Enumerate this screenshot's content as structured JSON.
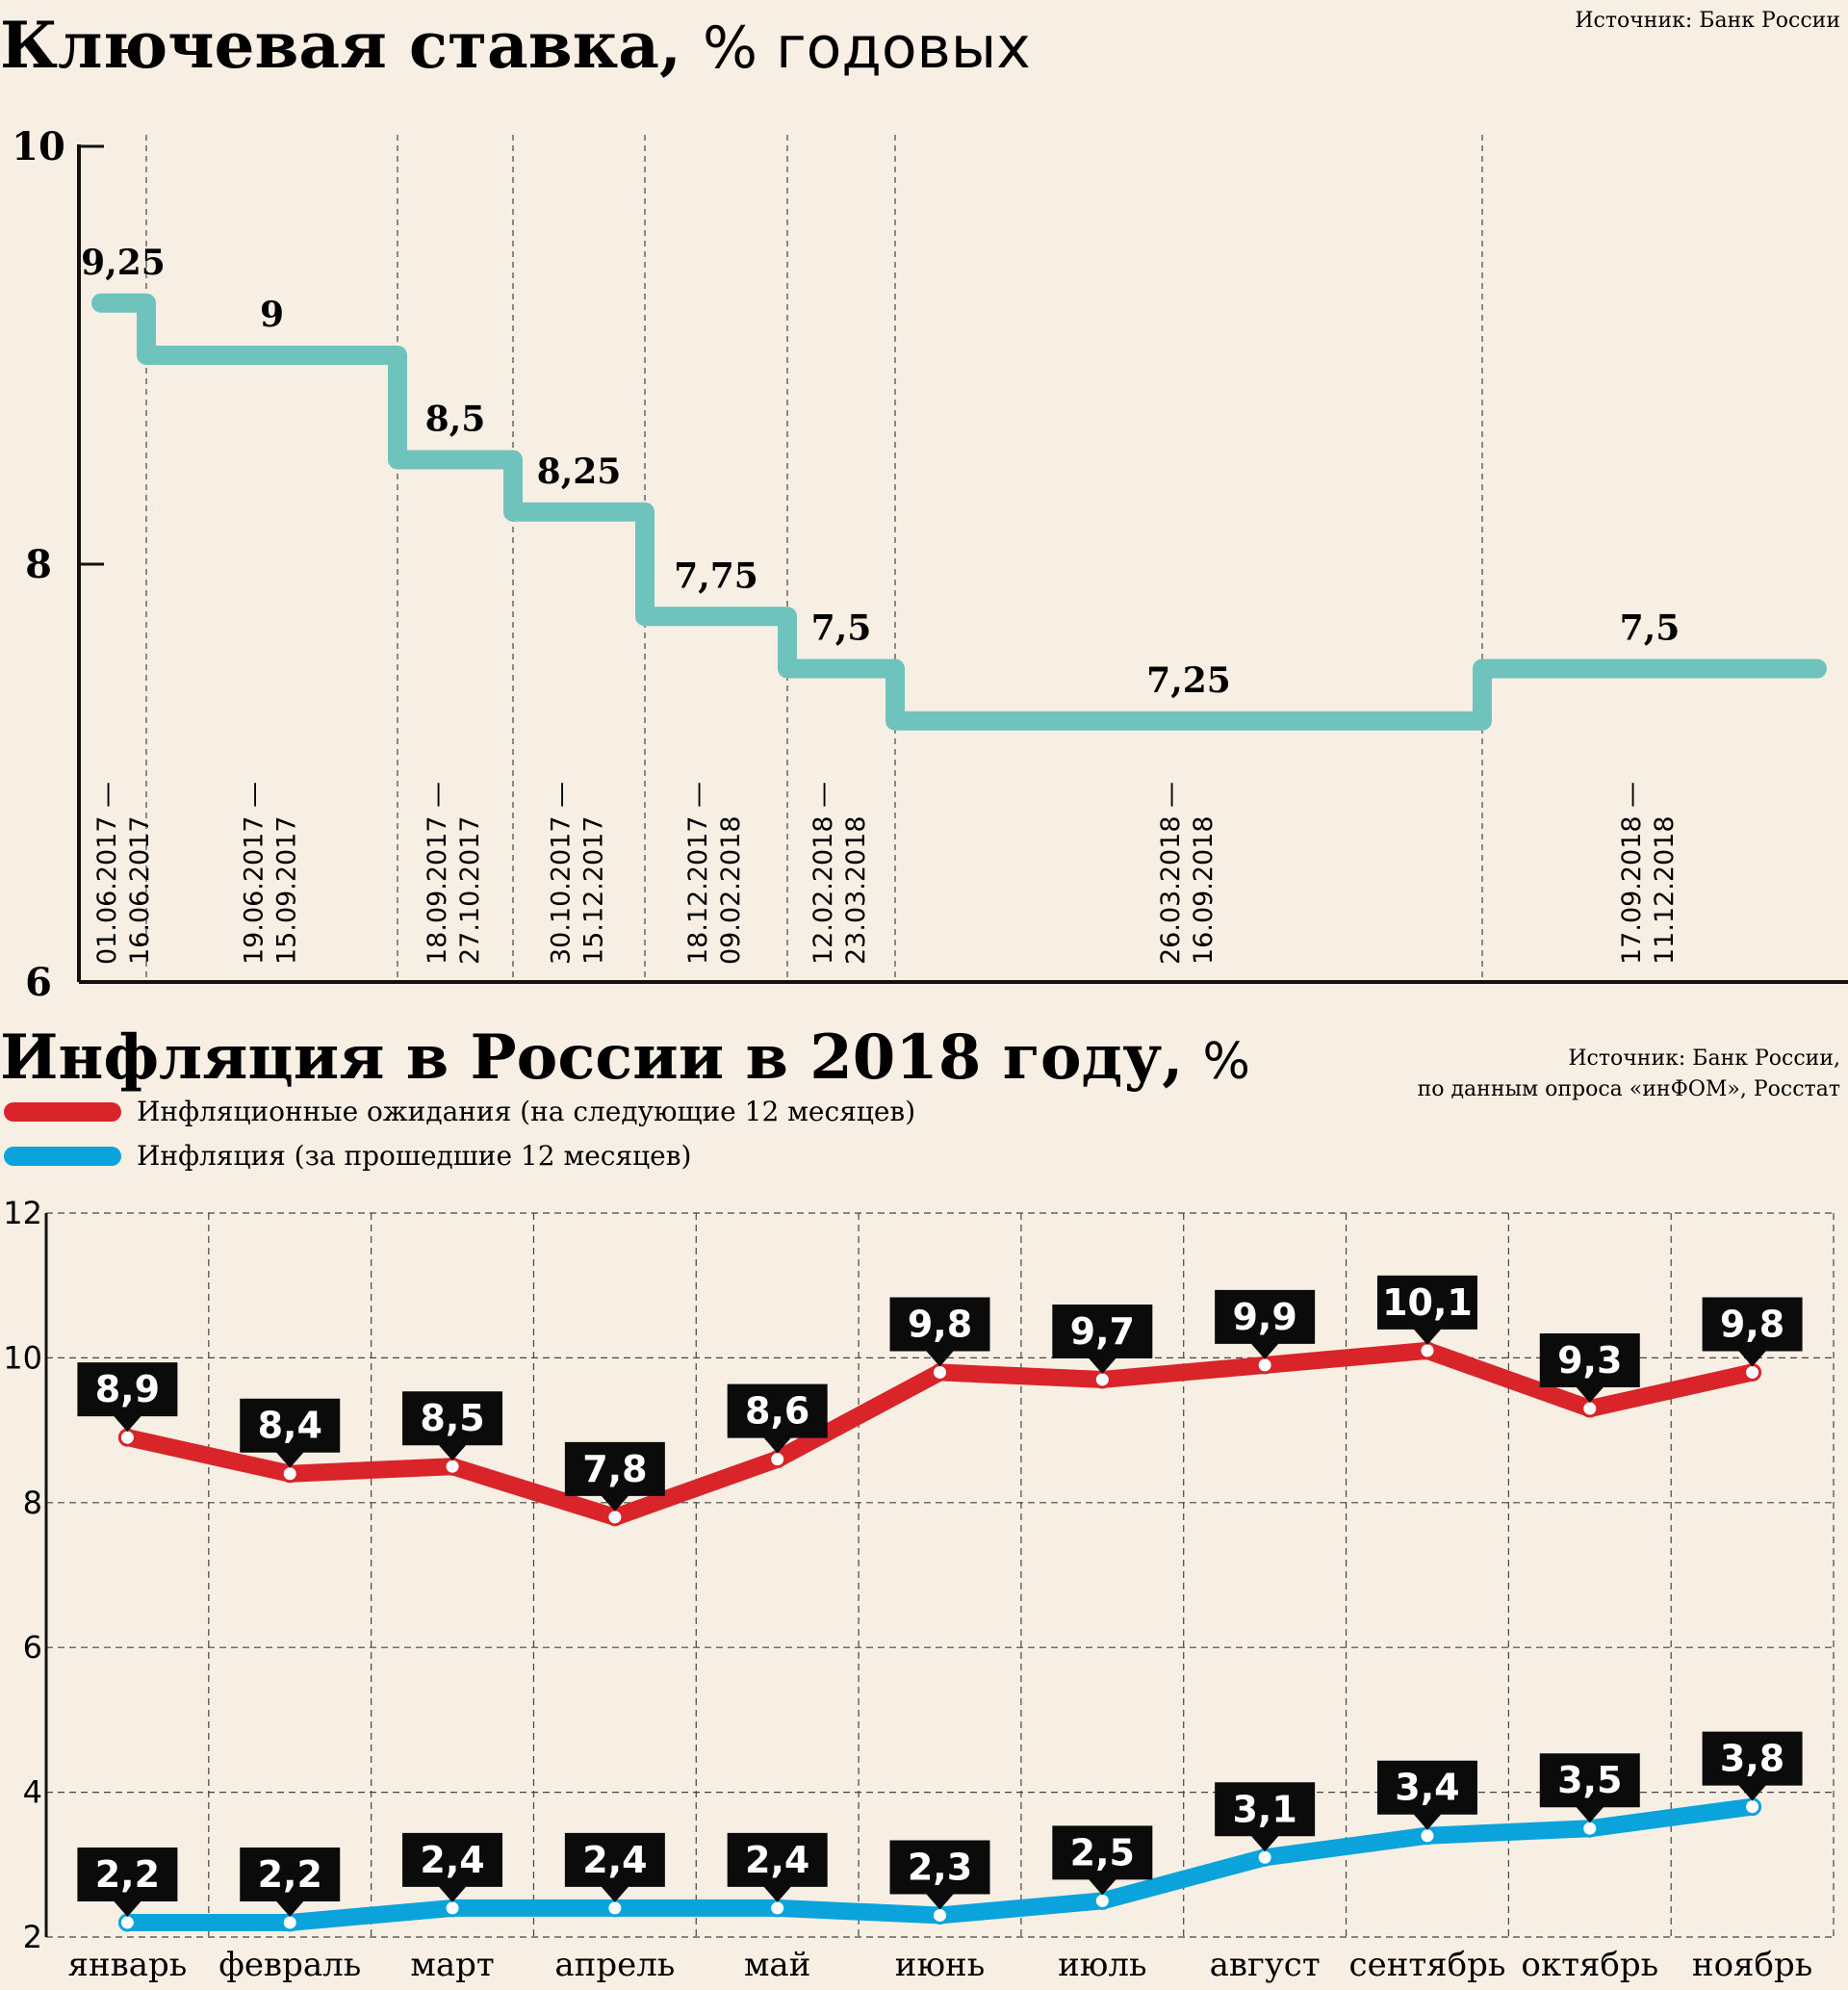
{
  "colors": {
    "background": "#f8efe4",
    "key_rate_line": "#6ec3bd",
    "expectations_line": "#d9252a",
    "inflation_line": "#0aa3dc",
    "label_box": "#0b0b0b",
    "label_text": "#ffffff",
    "text": "#111111"
  },
  "chart_data": [
    {
      "type": "line",
      "title": "Ключевая ставка,",
      "subtitle": "% годовых",
      "source": "Источник: Банк России",
      "step": true,
      "ylim": [
        6,
        10
      ],
      "y_ticks": [
        "10",
        "8",
        "6"
      ],
      "grid": "vertical-dashed",
      "periods": [
        {
          "start": "01.06.2017",
          "end": "16.06.2017",
          "value": 9.25,
          "label": "9,25",
          "date_label_line1": "01.06.2017 —",
          "date_label_line2": "16.06.2017"
        },
        {
          "start": "19.06.2017",
          "end": "15.09.2017",
          "value": 9.0,
          "label": "9",
          "date_label_line1": "19.06.2017 —",
          "date_label_line2": "15.09.2017"
        },
        {
          "start": "18.09.2017",
          "end": "27.10.2017",
          "value": 8.5,
          "label": "8,5",
          "date_label_line1": "18.09.2017 —",
          "date_label_line2": "27.10.2017"
        },
        {
          "start": "30.10.2017",
          "end": "15.12.2017",
          "value": 8.25,
          "label": "8,25",
          "date_label_line1": "30.10.2017 —",
          "date_label_line2": "15.12.2017"
        },
        {
          "start": "18.12.2017",
          "end": "09.02.2018",
          "value": 7.75,
          "label": "7,75",
          "date_label_line1": "18.12.2017 —",
          "date_label_line2": "09.02.2018"
        },
        {
          "start": "12.02.2018",
          "end": "23.03.2018",
          "value": 7.5,
          "label": "7,5",
          "date_label_line1": "12.02.2018 —",
          "date_label_line2": "23.03.2018"
        },
        {
          "start": "26.03.2018",
          "end": "16.09.2018",
          "value": 7.25,
          "label": "7,25",
          "date_label_line1": "26.03.2018 —",
          "date_label_line2": "16.09.2018"
        },
        {
          "start": "17.09.2018",
          "end": "11.12.2018",
          "value": 7.5,
          "label": "7,5",
          "date_label_line1": "17.09.2018 —",
          "date_label_line2": "11.12.2018"
        }
      ]
    },
    {
      "type": "line",
      "title": "Инфляция в России в 2018 году,",
      "subtitle": "%",
      "source_line1": "Источник: Банк России,",
      "source_line2": "по данным опроса «инФОМ», Росстат",
      "ylim": [
        2,
        12
      ],
      "y_ticks": [
        "12",
        "10",
        "8",
        "6",
        "4",
        "2"
      ],
      "grid": "dashed",
      "categories": [
        "январь",
        "февраль",
        "март",
        "апрель",
        "май",
        "июнь",
        "июль",
        "август",
        "сентябрь",
        "октябрь",
        "ноябрь"
      ],
      "series": [
        {
          "name": "Инфляционные ожидания (на следующие 12 месяцев)",
          "values": [
            8.9,
            8.4,
            8.5,
            7.8,
            8.6,
            9.8,
            9.7,
            9.9,
            10.1,
            9.3,
            9.8
          ],
          "labels": [
            "8,9",
            "8,4",
            "8,5",
            "7,8",
            "8,6",
            "9,8",
            "9,7",
            "9,9",
            "10,1",
            "9,3",
            "9,8"
          ]
        },
        {
          "name": "Инфляция (за прошедшие 12 месяцев)",
          "values": [
            2.2,
            2.2,
            2.4,
            2.4,
            2.4,
            2.3,
            2.5,
            3.1,
            3.4,
            3.5,
            3.8
          ],
          "labels": [
            "2,2",
            "2,2",
            "2,4",
            "2,4",
            "2,4",
            "2,3",
            "2,5",
            "3,1",
            "3,4",
            "3,5",
            "3,8"
          ]
        }
      ],
      "legend": "top-left"
    }
  ]
}
